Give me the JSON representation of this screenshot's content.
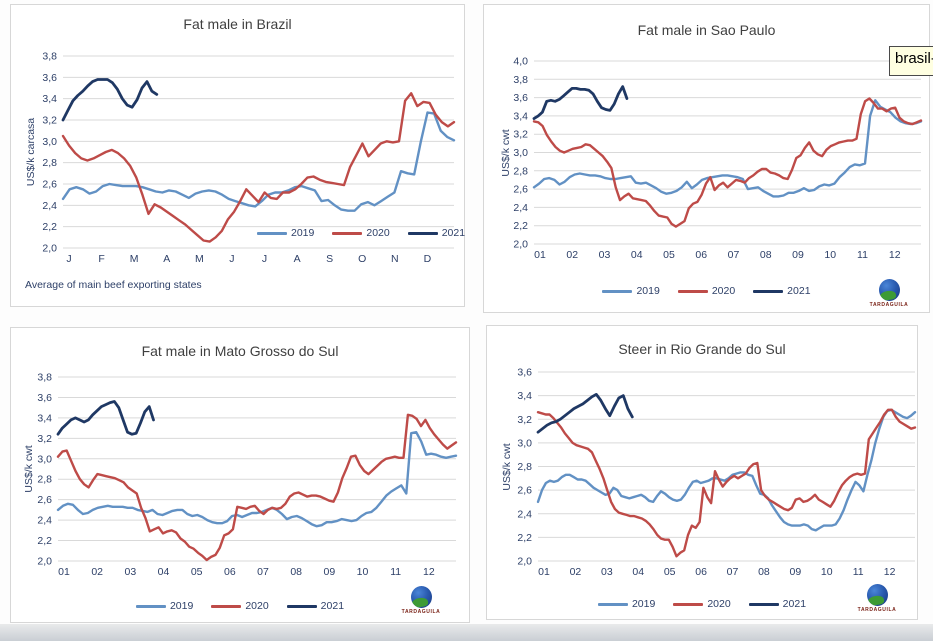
{
  "tooltip": {
    "text": "brasil-m",
    "bg_color": "#FFFFE1"
  },
  "logo": {
    "text": "TARDAGUILA"
  },
  "colors": {
    "line_2019": "#6291C4",
    "line_2020": "#BE4B48",
    "line_2021": "#1F3864",
    "gridline": "#D9D9D9",
    "axis_text": "#2E4068",
    "title_text": "#3F3F3F"
  },
  "chart_data": [
    {
      "type": "line",
      "title": "Fat male in Brazil",
      "ylabel": "US$/k carcasa",
      "footnote": "Average of main beef exporting states",
      "x_labels": [
        "J",
        "F",
        "M",
        "A",
        "M",
        "J",
        "J",
        "A",
        "S",
        "O",
        "N",
        "D"
      ],
      "ylim": [
        2.0,
        3.8
      ],
      "ystep": 0.2,
      "grid": true,
      "legend_position": "inside-bottom-right",
      "series": [
        {
          "name": "2019",
          "color": "#6291C4",
          "values": [
            2.46,
            2.55,
            2.57,
            2.55,
            2.51,
            2.53,
            2.58,
            2.6,
            2.59,
            2.58,
            2.58,
            2.58,
            2.57,
            2.55,
            2.53,
            2.52,
            2.54,
            2.53,
            2.5,
            2.47,
            2.51,
            2.53,
            2.54,
            2.53,
            2.5,
            2.46,
            2.44,
            2.42,
            2.4,
            2.39,
            2.44,
            2.5,
            2.52,
            2.52,
            2.54,
            2.57,
            2.58,
            2.56,
            2.54,
            2.44,
            2.45,
            2.4,
            2.36,
            2.35,
            2.35,
            2.41,
            2.43,
            2.4,
            2.44,
            2.48,
            2.52,
            2.72,
            2.7,
            2.69,
            3.0,
            3.27,
            3.26,
            3.1,
            3.04,
            3.01
          ]
        },
        {
          "name": "2020",
          "color": "#BE4B48",
          "values": [
            3.05,
            2.96,
            2.89,
            2.84,
            2.82,
            2.84,
            2.87,
            2.9,
            2.92,
            2.89,
            2.84,
            2.77,
            2.66,
            2.5,
            2.32,
            2.41,
            2.38,
            2.34,
            2.3,
            2.26,
            2.22,
            2.17,
            2.12,
            2.07,
            2.06,
            2.1,
            2.16,
            2.27,
            2.34,
            2.44,
            2.55,
            2.49,
            2.43,
            2.52,
            2.47,
            2.46,
            2.52,
            2.52,
            2.55,
            2.6,
            2.66,
            2.67,
            2.64,
            2.62,
            2.61,
            2.6,
            2.59,
            2.76,
            2.87,
            2.98,
            2.86,
            2.92,
            2.98,
            3.0,
            2.99,
            3.0,
            3.38,
            3.45,
            3.33,
            3.37,
            3.36,
            3.25,
            3.18,
            3.14,
            3.18
          ]
        },
        {
          "name": "2021",
          "color": "#1F3864",
          "values": [
            3.2,
            3.29,
            3.38,
            3.43,
            3.47,
            3.52,
            3.56,
            3.58,
            3.58,
            3.58,
            3.55,
            3.49,
            3.4,
            3.34,
            3.32,
            3.39,
            3.5,
            3.56,
            3.47,
            3.44
          ],
          "end_frac": 0.24
        }
      ]
    },
    {
      "type": "line",
      "title": "Fat male in Sao Paulo",
      "ylabel": "US$/k cwt",
      "x_labels": [
        "01",
        "02",
        "03",
        "04",
        "05",
        "06",
        "07",
        "08",
        "09",
        "10",
        "11",
        "12"
      ],
      "ylim": [
        2.0,
        4.0
      ],
      "ystep": 0.2,
      "grid": true,
      "legend_position": "bottom-center",
      "series": [
        {
          "name": "2019",
          "color": "#6291C4",
          "values": [
            2.62,
            2.66,
            2.71,
            2.72,
            2.7,
            2.65,
            2.68,
            2.73,
            2.76,
            2.77,
            2.76,
            2.75,
            2.75,
            2.74,
            2.72,
            2.71,
            2.71,
            2.72,
            2.73,
            2.74,
            2.67,
            2.66,
            2.67,
            2.64,
            2.61,
            2.57,
            2.55,
            2.56,
            2.58,
            2.62,
            2.68,
            2.61,
            2.65,
            2.7,
            2.72,
            2.73,
            2.74,
            2.75,
            2.75,
            2.74,
            2.73,
            2.71,
            2.6,
            2.61,
            2.62,
            2.58,
            2.55,
            2.52,
            2.52,
            2.53,
            2.56,
            2.56,
            2.58,
            2.61,
            2.58,
            2.59,
            2.63,
            2.65,
            2.64,
            2.66,
            2.73,
            2.78,
            2.84,
            2.87,
            2.86,
            2.88,
            3.4,
            3.57,
            3.5,
            3.47,
            3.44,
            3.38,
            3.34,
            3.32,
            3.31,
            3.32,
            3.34
          ]
        },
        {
          "name": "2020",
          "color": "#BE4B48",
          "values": [
            3.34,
            3.33,
            3.29,
            3.19,
            3.12,
            3.06,
            3.02,
            3.0,
            3.02,
            3.04,
            3.05,
            3.06,
            3.09,
            3.08,
            3.04,
            3.0,
            2.96,
            2.9,
            2.83,
            2.62,
            2.48,
            2.52,
            2.55,
            2.5,
            2.49,
            2.48,
            2.47,
            2.42,
            2.36,
            2.31,
            2.3,
            2.29,
            2.22,
            2.19,
            2.22,
            2.25,
            2.39,
            2.44,
            2.46,
            2.54,
            2.66,
            2.73,
            2.59,
            2.64,
            2.67,
            2.62,
            2.66,
            2.7,
            2.69,
            2.67,
            2.72,
            2.75,
            2.79,
            2.82,
            2.82,
            2.78,
            2.77,
            2.75,
            2.72,
            2.71,
            2.81,
            2.94,
            2.97,
            3.05,
            3.11,
            3.02,
            2.98,
            2.96,
            3.03,
            3.07,
            3.09,
            3.11,
            3.12,
            3.13,
            3.13,
            3.15,
            3.42,
            3.56,
            3.59,
            3.54,
            3.48,
            3.48,
            3.45,
            3.48,
            3.49,
            3.38,
            3.34,
            3.32,
            3.31,
            3.33,
            3.35
          ]
        },
        {
          "name": "2021",
          "color": "#1F3864",
          "values": [
            3.37,
            3.4,
            3.44,
            3.56,
            3.57,
            3.56,
            3.58,
            3.62,
            3.66,
            3.7,
            3.7,
            3.69,
            3.69,
            3.68,
            3.64,
            3.56,
            3.49,
            3.47,
            3.46,
            3.53,
            3.64,
            3.72,
            3.59
          ],
          "end_frac": 0.24
        }
      ]
    },
    {
      "type": "line",
      "title": "Fat male in Mato Grosso do Sul",
      "ylabel": "US$/k cwt",
      "x_labels": [
        "01",
        "02",
        "03",
        "04",
        "05",
        "06",
        "07",
        "08",
        "09",
        "10",
        "11",
        "12"
      ],
      "ylim": [
        2.0,
        3.8
      ],
      "ystep": 0.2,
      "grid": true,
      "legend_position": "bottom-center",
      "series": [
        {
          "name": "2019",
          "color": "#6291C4",
          "values": [
            2.5,
            2.54,
            2.56,
            2.55,
            2.5,
            2.46,
            2.47,
            2.5,
            2.52,
            2.53,
            2.54,
            2.53,
            2.53,
            2.53,
            2.52,
            2.52,
            2.5,
            2.49,
            2.48,
            2.5,
            2.46,
            2.45,
            2.47,
            2.49,
            2.5,
            2.5,
            2.46,
            2.44,
            2.45,
            2.43,
            2.4,
            2.38,
            2.37,
            2.37,
            2.39,
            2.44,
            2.45,
            2.43,
            2.45,
            2.47,
            2.47,
            2.48,
            2.5,
            2.52,
            2.5,
            2.46,
            2.41,
            2.43,
            2.44,
            2.42,
            2.39,
            2.36,
            2.34,
            2.35,
            2.38,
            2.38,
            2.39,
            2.41,
            2.4,
            2.39,
            2.4,
            2.44,
            2.47,
            2.48,
            2.52,
            2.58,
            2.64,
            2.68,
            2.71,
            2.74,
            2.66,
            3.25,
            3.26,
            3.17,
            3.04,
            3.05,
            3.04,
            3.02,
            3.01,
            3.02,
            3.03
          ]
        },
        {
          "name": "2020",
          "color": "#BE4B48",
          "values": [
            3.02,
            3.07,
            3.08,
            2.98,
            2.88,
            2.8,
            2.75,
            2.72,
            2.79,
            2.85,
            2.84,
            2.83,
            2.82,
            2.81,
            2.79,
            2.77,
            2.72,
            2.69,
            2.66,
            2.52,
            2.42,
            2.29,
            2.31,
            2.33,
            2.27,
            2.29,
            2.3,
            2.28,
            2.22,
            2.19,
            2.14,
            2.12,
            2.08,
            2.05,
            2.01,
            2.04,
            2.06,
            2.13,
            2.25,
            2.27,
            2.31,
            2.53,
            2.52,
            2.51,
            2.53,
            2.54,
            2.49,
            2.46,
            2.5,
            2.52,
            2.51,
            2.52,
            2.56,
            2.63,
            2.66,
            2.67,
            2.65,
            2.63,
            2.64,
            2.64,
            2.63,
            2.61,
            2.59,
            2.58,
            2.67,
            2.81,
            2.91,
            3.02,
            3.03,
            2.94,
            2.88,
            2.85,
            2.89,
            2.93,
            2.97,
            3.0,
            3.01,
            3.02,
            3.01,
            3.01,
            3.43,
            3.42,
            3.39,
            3.32,
            3.38,
            3.3,
            3.24,
            3.19,
            3.14,
            3.1,
            3.13,
            3.16
          ]
        },
        {
          "name": "2021",
          "color": "#1F3864",
          "values": [
            3.24,
            3.3,
            3.34,
            3.38,
            3.4,
            3.38,
            3.36,
            3.38,
            3.43,
            3.47,
            3.51,
            3.53,
            3.55,
            3.56,
            3.5,
            3.38,
            3.26,
            3.24,
            3.25,
            3.35,
            3.46,
            3.51,
            3.38
          ],
          "end_frac": 0.24
        }
      ]
    },
    {
      "type": "line",
      "title": "Steer in Rio Grande do Sul",
      "ylabel": "US$/k cwt",
      "x_labels": [
        "01",
        "02",
        "03",
        "04",
        "05",
        "06",
        "07",
        "08",
        "09",
        "10",
        "11",
        "12"
      ],
      "ylim": [
        2.0,
        3.6
      ],
      "ystep": 0.2,
      "grid": true,
      "legend_position": "bottom-center",
      "series": [
        {
          "name": "2019",
          "color": "#6291C4",
          "values": [
            2.5,
            2.6,
            2.66,
            2.68,
            2.67,
            2.68,
            2.71,
            2.73,
            2.73,
            2.71,
            2.69,
            2.69,
            2.68,
            2.65,
            2.62,
            2.6,
            2.58,
            2.56,
            2.57,
            2.62,
            2.6,
            2.55,
            2.54,
            2.53,
            2.54,
            2.55,
            2.56,
            2.54,
            2.51,
            2.5,
            2.55,
            2.59,
            2.57,
            2.54,
            2.52,
            2.51,
            2.52,
            2.56,
            2.62,
            2.67,
            2.68,
            2.66,
            2.67,
            2.68,
            2.7,
            2.7,
            2.69,
            2.68,
            2.7,
            2.73,
            2.74,
            2.75,
            2.75,
            2.73,
            2.72,
            2.64,
            2.57,
            2.56,
            2.53,
            2.47,
            2.42,
            2.37,
            2.33,
            2.31,
            2.3,
            2.3,
            2.3,
            2.31,
            2.3,
            2.27,
            2.26,
            2.28,
            2.3,
            2.3,
            2.3,
            2.31,
            2.36,
            2.43,
            2.52,
            2.6,
            2.67,
            2.64,
            2.59,
            2.73,
            2.85,
            3.0,
            3.12,
            3.22,
            3.27,
            3.28,
            3.26,
            3.24,
            3.22,
            3.21,
            3.23,
            3.26
          ]
        },
        {
          "name": "2020",
          "color": "#BE4B48",
          "values": [
            3.26,
            3.25,
            3.24,
            3.24,
            3.21,
            3.17,
            3.13,
            3.08,
            3.04,
            3.0,
            2.98,
            2.97,
            2.96,
            2.95,
            2.92,
            2.85,
            2.78,
            2.7,
            2.6,
            2.5,
            2.44,
            2.41,
            2.4,
            2.39,
            2.38,
            2.38,
            2.37,
            2.36,
            2.34,
            2.31,
            2.27,
            2.22,
            2.19,
            2.18,
            2.18,
            2.12,
            2.04,
            2.07,
            2.09,
            2.22,
            2.3,
            2.28,
            2.33,
            2.62,
            2.54,
            2.49,
            2.76,
            2.69,
            2.63,
            2.67,
            2.7,
            2.72,
            2.7,
            2.72,
            2.74,
            2.79,
            2.82,
            2.83,
            2.6,
            2.55,
            2.52,
            2.5,
            2.48,
            2.46,
            2.44,
            2.43,
            2.45,
            2.52,
            2.53,
            2.5,
            2.51,
            2.53,
            2.56,
            2.52,
            2.5,
            2.48,
            2.46,
            2.51,
            2.58,
            2.64,
            2.68,
            2.71,
            2.73,
            2.74,
            2.73,
            2.74,
            3.03,
            3.08,
            3.13,
            3.18,
            3.24,
            3.28,
            3.28,
            3.22,
            3.18,
            3.16,
            3.14,
            3.12,
            3.13
          ]
        },
        {
          "name": "2021",
          "color": "#1F3864",
          "values": [
            3.09,
            3.12,
            3.15,
            3.17,
            3.18,
            3.2,
            3.23,
            3.26,
            3.29,
            3.31,
            3.33,
            3.36,
            3.39,
            3.41,
            3.36,
            3.29,
            3.23,
            3.31,
            3.38,
            3.4,
            3.29,
            3.22
          ],
          "end_frac": 0.25
        }
      ]
    }
  ]
}
